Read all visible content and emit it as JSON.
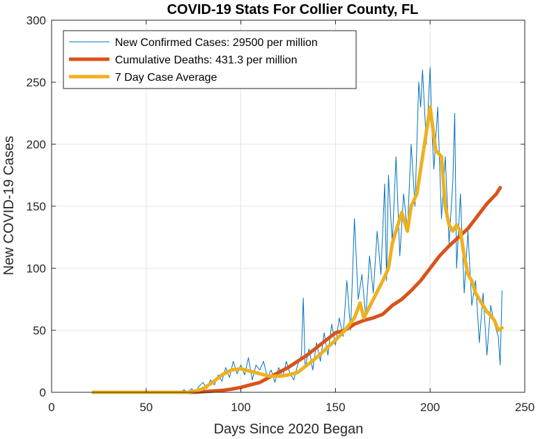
{
  "chart_data": {
    "type": "line",
    "title": "COVID-19 Stats For Collier County, FL",
    "xlabel": "Days Since 2020 Began",
    "ylabel": "New COVID-19 Cases",
    "xlim": [
      0,
      250
    ],
    "ylim": [
      0,
      300
    ],
    "xticks": [
      0,
      50,
      100,
      150,
      200,
      250
    ],
    "yticks": [
      0,
      50,
      100,
      150,
      200,
      250,
      300
    ],
    "grid": true,
    "legend_position": "top-left",
    "series": [
      {
        "name": "New Confirmed Cases: 29500 per million",
        "color": "#0072BD",
        "width": 1,
        "x": [
          22,
          30,
          40,
          50,
          60,
          68,
          70,
          72,
          74,
          76,
          78,
          80,
          82,
          84,
          86,
          88,
          90,
          92,
          94,
          96,
          98,
          100,
          102,
          104,
          106,
          108,
          110,
          112,
          114,
          116,
          118,
          120,
          122,
          124,
          126,
          128,
          130,
          132,
          133,
          134,
          136,
          138,
          140,
          142,
          144,
          146,
          148,
          150,
          152,
          154,
          156,
          158,
          160,
          162,
          164,
          166,
          168,
          170,
          172,
          174,
          176,
          177,
          178,
          180,
          182,
          184,
          186,
          188,
          190,
          192,
          194,
          195,
          196,
          198,
          200,
          201,
          202,
          204,
          206,
          208,
          210,
          212,
          213,
          214,
          216,
          218,
          220,
          222,
          224,
          226,
          228,
          230,
          232,
          234,
          236,
          237,
          238
        ],
        "y": [
          0,
          0,
          0,
          0,
          0,
          0,
          2,
          0,
          3,
          0,
          5,
          8,
          3,
          10,
          6,
          14,
          9,
          20,
          12,
          25,
          15,
          22,
          14,
          28,
          10,
          22,
          18,
          25,
          12,
          18,
          8,
          20,
          12,
          25,
          15,
          10,
          22,
          30,
          76,
          20,
          35,
          18,
          40,
          25,
          48,
          30,
          55,
          38,
          60,
          45,
          90,
          50,
          140,
          75,
          95,
          60,
          110,
          80,
          130,
          95,
          168,
          90,
          175,
          120,
          190,
          110,
          160,
          130,
          200,
          150,
          250,
          230,
          260,
          200,
          262,
          210,
          180,
          230,
          140,
          190,
          120,
          170,
          225,
          100,
          160,
          80,
          130,
          70,
          90,
          40,
          80,
          30,
          70,
          55,
          45,
          22,
          82
        ]
      },
      {
        "name": "Cumulative Deaths: 431.3 per million",
        "color": "#D95319",
        "width": 5,
        "x": [
          22,
          40,
          60,
          72,
          76,
          80,
          85,
          90,
          95,
          100,
          105,
          110,
          115,
          120,
          125,
          130,
          135,
          140,
          145,
          150,
          155,
          160,
          165,
          170,
          175,
          180,
          185,
          190,
          195,
          200,
          205,
          210,
          215,
          220,
          225,
          230,
          235,
          237
        ],
        "y": [
          0,
          0,
          0,
          0,
          0,
          0.5,
          1,
          1.5,
          2.5,
          4,
          6,
          8,
          12,
          16,
          20,
          25,
          30,
          36,
          42,
          48,
          50,
          55,
          58,
          60,
          63,
          70,
          75,
          82,
          90,
          100,
          110,
          118,
          125,
          132,
          142,
          152,
          160,
          165
        ]
      },
      {
        "name": "7 Day Case Average",
        "color": "#EDB120",
        "width": 5,
        "x": [
          22,
          40,
          60,
          72,
          76,
          80,
          85,
          90,
          95,
          100,
          105,
          110,
          115,
          120,
          125,
          130,
          135,
          140,
          145,
          150,
          155,
          160,
          163,
          165,
          170,
          175,
          178,
          180,
          183,
          185,
          188,
          190,
          193,
          195,
          198,
          200,
          203,
          206,
          208,
          210,
          212,
          214,
          216,
          218,
          220,
          222,
          224,
          226,
          228,
          230,
          232,
          234,
          236,
          238
        ],
        "y": [
          0,
          0,
          0,
          0,
          1,
          3,
          8,
          14,
          18,
          19,
          17,
          15,
          13,
          13,
          14,
          16,
          22,
          28,
          35,
          42,
          50,
          60,
          72,
          60,
          75,
          90,
          100,
          120,
          135,
          145,
          130,
          150,
          160,
          180,
          210,
          230,
          195,
          190,
          150,
          135,
          130,
          135,
          130,
          110,
          95,
          90,
          80,
          75,
          70,
          65,
          62,
          58,
          50,
          52
        ]
      }
    ]
  }
}
